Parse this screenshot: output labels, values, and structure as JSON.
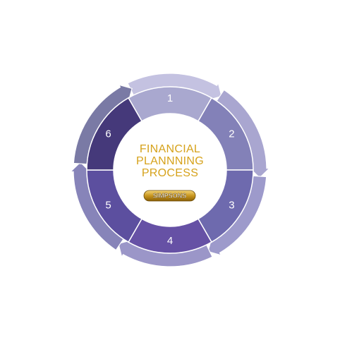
{
  "diagram": {
    "steps": [
      {
        "label": "1",
        "color": "#a9a8cf"
      },
      {
        "label": "2",
        "color": "#8381b8"
      },
      {
        "label": "3",
        "color": "#6e6aae"
      },
      {
        "label": "4",
        "color": "#6651a5"
      },
      {
        "label": "5",
        "color": "#5c4f9f"
      },
      {
        "label": "6",
        "color": "#45397a"
      }
    ],
    "outer_arrow_colors": [
      "#c4c2e1",
      "#a9a6d0",
      "#9d9acb",
      "#9b96c8",
      "#8784b9",
      "#7a7aa5"
    ],
    "center": {
      "title_lines": [
        "FINANCIAL",
        "PLANNNING",
        "PROCESS"
      ],
      "title_color": "#d6a21b",
      "brand": "SIMPSONS",
      "brand_color": "#b8860b"
    }
  }
}
